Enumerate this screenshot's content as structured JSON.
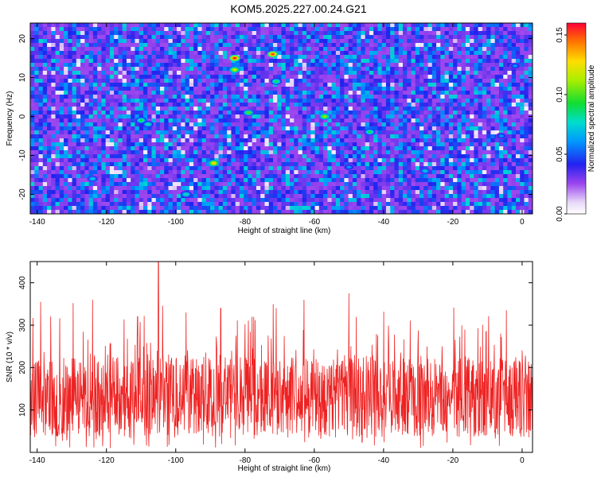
{
  "title": "KOM5.2025.227.00.24.G21",
  "chart_data": [
    {
      "type": "heatmap",
      "xlabel": "Height of straight line (km)",
      "ylabel": "Frequency (Hz)",
      "xlim": [
        -142,
        3
      ],
      "ylim": [
        -25,
        24
      ],
      "xticks": [
        -140,
        -120,
        -100,
        -80,
        -60,
        -40,
        -20,
        0
      ],
      "yticks": [
        -20,
        -10,
        0,
        10,
        20
      ],
      "colorbar": {
        "label": "Normalized spectral amplitude",
        "range": [
          0,
          0.16
        ],
        "ticks": [
          "0.00",
          "0.05",
          "0.10",
          "0.15"
        ],
        "tick_values": [
          0,
          0.05,
          0.1,
          0.15
        ]
      },
      "hotspots": [
        {
          "x": -83,
          "y": 15,
          "v": 0.155
        },
        {
          "x": -72,
          "y": 16,
          "v": 0.15
        },
        {
          "x": -83,
          "y": 12,
          "v": 0.12
        },
        {
          "x": -89,
          "y": -12,
          "v": 0.13
        },
        {
          "x": -110,
          "y": -1,
          "v": 0.09
        },
        {
          "x": -108,
          "y": -2,
          "v": 0.08
        },
        {
          "x": -79,
          "y": 1,
          "v": 0.1
        },
        {
          "x": -57,
          "y": 0,
          "v": 0.11
        },
        {
          "x": -71,
          "y": 9,
          "v": 0.09
        },
        {
          "x": -44,
          "y": -4,
          "v": 0.09
        },
        {
          "x": -97,
          "y": -20,
          "v": 0.08
        },
        {
          "x": -124,
          "y": -16,
          "v": 0.07
        },
        {
          "x": -28,
          "y": -14,
          "v": 0.07
        },
        {
          "x": -50,
          "y": -13,
          "v": 0.06
        },
        {
          "x": -6,
          "y": -5,
          "v": 0.06
        },
        {
          "x": -2,
          "y": 13,
          "v": 0.06
        }
      ]
    },
    {
      "type": "line",
      "xlabel": "Height of straight line (km)",
      "ylabel": "SNR (10 * v/v)",
      "xlim": [
        -142,
        3
      ],
      "ylim": [
        0,
        450
      ],
      "xticks": [
        -140,
        -120,
        -100,
        -80,
        -60,
        -40,
        -20,
        0
      ],
      "yticks": [
        100,
        200,
        300,
        400
      ],
      "series_color": "#ee2222",
      "peaks": [
        {
          "x": -105,
          "y": 450
        },
        {
          "x": -50,
          "y": 375
        },
        {
          "x": -63,
          "y": 360
        },
        {
          "x": -124,
          "y": 360
        },
        {
          "x": -139,
          "y": 355
        },
        {
          "x": -87,
          "y": 340
        },
        {
          "x": -71,
          "y": 340
        },
        {
          "x": -97,
          "y": 330
        },
        {
          "x": -111,
          "y": 320
        },
        {
          "x": -78,
          "y": 320
        }
      ]
    }
  ]
}
